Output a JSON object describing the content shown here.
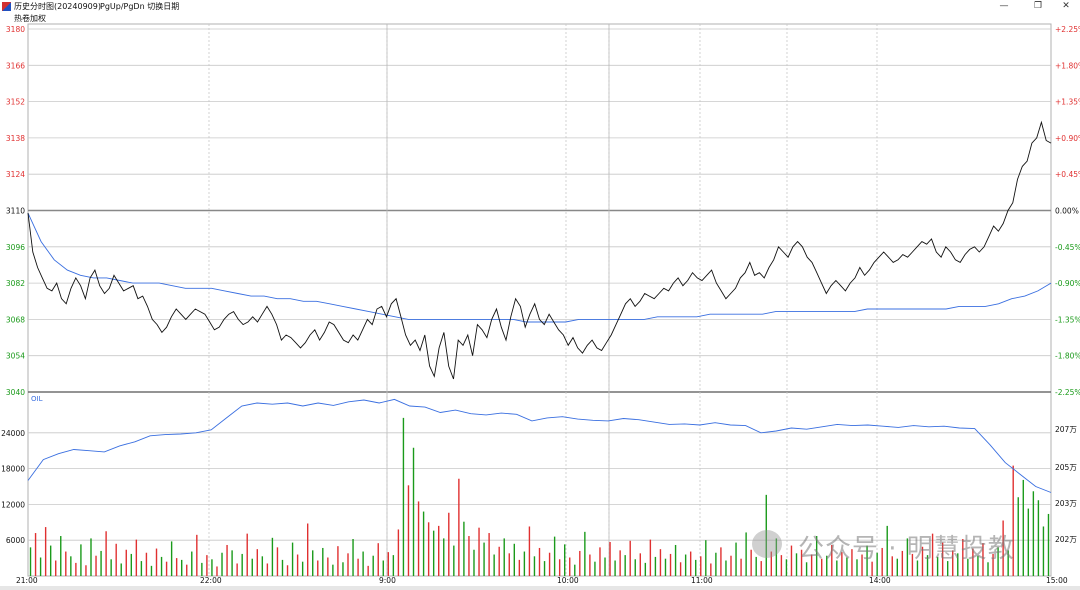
{
  "window": {
    "title": "历史分时图(20240909)",
    "hint": "PgUp/PgDn  切换日期",
    "minimize": "—",
    "restore": "❐",
    "close": "✕"
  },
  "subtitle": "热卷加权",
  "watermark": "公众号 · 明慧投教",
  "colors": {
    "price_line": "#111111",
    "avg_line": "#3a6fe0",
    "up": "#e03030",
    "down": "#1a9a1a",
    "grid": "#c8c8c8"
  },
  "chart_data": {
    "type": "line",
    "price_axis": {
      "ylim": [
        3040,
        3180
      ],
      "ticks": [
        3180,
        3166,
        3152,
        3138,
        3124,
        3110,
        3096,
        3082,
        3068,
        3054,
        3040
      ],
      "reference": 3110,
      "pct_ticks": [
        "+2.25%",
        "+1.80%",
        "+1.35%",
        "+0.90%",
        "+0.45%",
        "0.00%",
        "-0.45%",
        "-0.90%",
        "-1.35%",
        "-1.80%",
        "-2.25%"
      ]
    },
    "x_ticks": [
      "21:00",
      "22:00",
      "9:00",
      "10:00",
      "11:00",
      "14:00",
      "15:00"
    ],
    "price_series": {
      "name": "price",
      "values": [
        3109,
        3094,
        3088,
        3084,
        3080,
        3079,
        3082,
        3076,
        3074,
        3080,
        3084,
        3081,
        3076,
        3084,
        3087,
        3081,
        3078,
        3080,
        3085,
        3082,
        3079,
        3080,
        3081,
        3076,
        3077,
        3073,
        3068,
        3066,
        3063,
        3065,
        3069,
        3072,
        3070,
        3068,
        3070,
        3072,
        3071,
        3070,
        3067,
        3064,
        3065,
        3068,
        3070,
        3071,
        3068,
        3066,
        3067,
        3069,
        3067,
        3070,
        3073,
        3070,
        3066,
        3060,
        3062,
        3061,
        3059,
        3057,
        3059,
        3062,
        3064,
        3060,
        3063,
        3067,
        3066,
        3063,
        3060,
        3059,
        3062,
        3060,
        3064,
        3068,
        3066,
        3072,
        3073,
        3069,
        3074,
        3076,
        3069,
        3062,
        3058,
        3060,
        3056,
        3062,
        3050,
        3046,
        3057,
        3063,
        3050,
        3045,
        3060,
        3058,
        3062,
        3054,
        3066,
        3064,
        3061,
        3068,
        3072,
        3065,
        3060,
        3069,
        3076,
        3073,
        3065,
        3070,
        3074,
        3068,
        3066,
        3070,
        3067,
        3064,
        3062,
        3058,
        3061,
        3057,
        3055,
        3058,
        3060,
        3057,
        3056,
        3059,
        3062,
        3066,
        3070,
        3074,
        3076,
        3073,
        3075,
        3078,
        3077,
        3076,
        3078,
        3080,
        3079,
        3082,
        3084,
        3081,
        3083,
        3086,
        3084,
        3083,
        3085,
        3087,
        3082,
        3079,
        3076,
        3078,
        3080,
        3084,
        3086,
        3090,
        3085,
        3086,
        3084,
        3088,
        3091,
        3096,
        3094,
        3092,
        3096,
        3098,
        3096,
        3092,
        3090,
        3086,
        3082,
        3078,
        3081,
        3083,
        3081,
        3079,
        3082,
        3084,
        3088,
        3085,
        3087,
        3090,
        3092,
        3094,
        3092,
        3090,
        3091,
        3093,
        3092,
        3094,
        3096,
        3098,
        3097,
        3099,
        3094,
        3092,
        3096,
        3094,
        3091,
        3090,
        3093,
        3095,
        3096,
        3094,
        3096,
        3100,
        3104,
        3102,
        3105,
        3110,
        3113,
        3122,
        3127,
        3129,
        3136,
        3138,
        3144,
        3137,
        3136
      ]
    },
    "avg_series": {
      "name": "average",
      "values": [
        3109,
        3098,
        3091,
        3087,
        3085,
        3084,
        3084,
        3083,
        3082,
        3082,
        3082,
        3081,
        3080,
        3080,
        3080,
        3079,
        3078,
        3077,
        3077,
        3076,
        3076,
        3075,
        3075,
        3074,
        3073,
        3072,
        3071,
        3070,
        3069,
        3068,
        3068,
        3068,
        3068,
        3068,
        3068,
        3068,
        3068,
        3068,
        3067,
        3067,
        3067,
        3067,
        3068,
        3068,
        3068,
        3068,
        3068,
        3068,
        3069,
        3069,
        3069,
        3069,
        3070,
        3070,
        3070,
        3070,
        3070,
        3071,
        3071,
        3071,
        3071,
        3071,
        3071,
        3071,
        3072,
        3072,
        3072,
        3072,
        3072,
        3072,
        3072,
        3073,
        3073,
        3073,
        3074,
        3076,
        3077,
        3079,
        3082
      ]
    },
    "volume_axis": {
      "ylim": [
        0,
        30000
      ],
      "ticks": [
        24000,
        18000,
        12000,
        6000
      ]
    },
    "oi_axis": {
      "label": "OIL",
      "ticks": [
        "207万",
        "205万",
        "203万",
        "202万"
      ]
    },
    "oi_series": {
      "name": "OIL",
      "values": [
        16000,
        19500,
        20500,
        21200,
        21000,
        20800,
        21800,
        22500,
        23500,
        23700,
        23800,
        24000,
        24500,
        26500,
        28500,
        29000,
        28800,
        29000,
        28500,
        29000,
        28600,
        29200,
        29500,
        29000,
        29600,
        28500,
        28300,
        27400,
        27800,
        27200,
        27000,
        27300,
        27100,
        26000,
        26500,
        26700,
        26300,
        26100,
        26000,
        26400,
        26200,
        25800,
        25400,
        25500,
        25300,
        25700,
        25300,
        25200,
        24000,
        24300,
        24800,
        24600,
        25000,
        25400,
        25200,
        25300,
        25100,
        24900,
        25200,
        25000,
        25100,
        24800,
        24700,
        22000,
        19000,
        17000,
        15000,
        14000
      ]
    },
    "volume_bars": [
      4800,
      7200,
      3100,
      8200,
      5100,
      2600,
      6700,
      4100,
      3300,
      2200,
      5300,
      1800,
      6300,
      3400,
      4200,
      7500,
      2800,
      5400,
      2100,
      4400,
      3700,
      6100,
      2500,
      3900,
      1700,
      4600,
      3200,
      2400,
      5800,
      3000,
      2700,
      1900,
      4100,
      6900,
      2200,
      3500,
      2800,
      1600,
      3900,
      5200,
      4300,
      2100,
      3700,
      7100,
      2900,
      4500,
      3300,
      2100,
      6400,
      4800,
      2700,
      1800,
      5600,
      3600,
      2400,
      8800,
      4300,
      2600,
      4700,
      3100,
      1900,
      5000,
      2300,
      3800,
      6200,
      2900,
      4100,
      1700,
      3400,
      5500,
      2600,
      4000,
      3500,
      7800,
      26500,
      15200,
      21500,
      12500,
      10800,
      9000,
      7600,
      8400,
      6300,
      10600,
      5100,
      16300,
      9100,
      6700,
      4400,
      8100,
      5600,
      7200,
      3600,
      4900,
      6300,
      3800,
      5400,
      2700,
      4100,
      8300,
      3300,
      4700,
      2500,
      3900,
      6600,
      2800,
      5300,
      3100,
      1900,
      4200,
      7400,
      3600,
      2400,
      4800,
      3100,
      5700,
      2600,
      4300,
      3500,
      5900,
      2800,
      3800,
      2200,
      6100,
      3200,
      4500,
      2900,
      3700,
      5200,
      2300,
      3600,
      4100,
      2700,
      3300,
      6000,
      2100,
      3900,
      4800,
      2600,
      3400,
      5600,
      2900,
      7300,
      4400,
      3200,
      2500,
      13600,
      4100,
      6300,
      3500,
      2800,
      5100,
      3800,
      4400,
      2300,
      3600,
      6700,
      2900,
      3400,
      5200,
      2600,
      4000,
      3100,
      4500,
      2800,
      3600,
      5100,
      2400,
      3900,
      4700,
      8400,
      3300,
      2900,
      4200,
      6300,
      3700,
      2600,
      4900,
      3500,
      7100,
      3200,
      5600,
      2500,
      4300,
      3800,
      6200,
      2900,
      4600,
      3400,
      5500,
      2300,
      3700,
      4800,
      9300,
      4300,
      18500,
      13200,
      16100,
      11300,
      14200,
      12700,
      8300,
      10400
    ],
    "volume_bar_colors": [
      "down",
      "up",
      "down",
      "up",
      "down",
      "up",
      "down",
      "up",
      "down",
      "up",
      "down",
      "up",
      "down",
      "up",
      "down",
      "up",
      "down",
      "up",
      "down",
      "up",
      "down",
      "up",
      "down",
      "up",
      "down",
      "up",
      "down",
      "up",
      "down",
      "up",
      "down",
      "up",
      "down",
      "up",
      "down",
      "up",
      "down",
      "up",
      "down",
      "up",
      "down",
      "up",
      "down",
      "up",
      "down",
      "up",
      "down",
      "up",
      "down",
      "up",
      "down",
      "up",
      "down",
      "up",
      "down",
      "up",
      "down",
      "up",
      "down",
      "up",
      "down",
      "up",
      "down",
      "up",
      "down",
      "up",
      "down",
      "up",
      "down",
      "up",
      "down",
      "up",
      "down",
      "up",
      "down",
      "up",
      "down",
      "up",
      "down",
      "up",
      "down",
      "up",
      "down",
      "up",
      "down",
      "up",
      "down",
      "up",
      "down",
      "up",
      "down",
      "up",
      "down",
      "up",
      "down",
      "up",
      "down",
      "up",
      "down",
      "up",
      "down",
      "up",
      "down",
      "up",
      "down",
      "up",
      "down",
      "up",
      "down",
      "up",
      "down",
      "up",
      "down",
      "up",
      "down",
      "up",
      "down",
      "up",
      "down",
      "up",
      "down",
      "up",
      "down",
      "up",
      "down",
      "up",
      "down",
      "up",
      "down",
      "up",
      "down",
      "up",
      "down",
      "up",
      "down",
      "up",
      "down",
      "up",
      "down",
      "up",
      "down",
      "up",
      "down",
      "up",
      "down",
      "up",
      "down",
      "up",
      "down",
      "up",
      "down",
      "up",
      "down",
      "up",
      "down",
      "up",
      "down",
      "up",
      "down",
      "up",
      "down",
      "up",
      "down",
      "up",
      "down",
      "up",
      "down",
      "up",
      "down",
      "up",
      "down",
      "up",
      "down",
      "up",
      "down",
      "up",
      "down",
      "up",
      "down",
      "up",
      "down",
      "up",
      "down",
      "up",
      "down",
      "up",
      "down",
      "up",
      "down",
      "up",
      "down",
      "up",
      "down",
      "up",
      "down",
      "up"
    ]
  }
}
